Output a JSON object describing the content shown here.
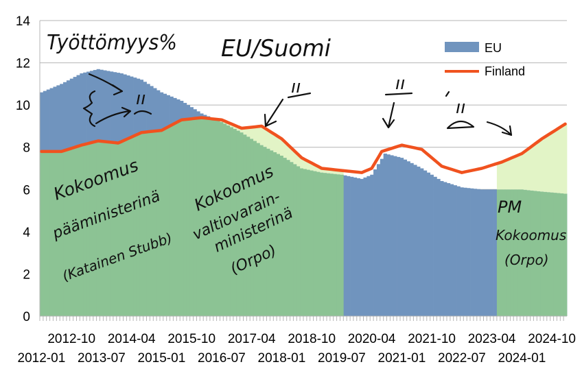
{
  "chart_data": {
    "type": "area",
    "ylim": [
      0,
      14
    ],
    "yticks": [
      0,
      2,
      4,
      6,
      8,
      10,
      12,
      14
    ],
    "xticks_upper": [
      "2012-10",
      "2014-04",
      "2015-10",
      "2017-04",
      "2018-10",
      "2020-04",
      "2021-10",
      "2023-04",
      "2024-10"
    ],
    "xticks_lower": [
      "2012-01",
      "2013-07",
      "2015-01",
      "2016-07",
      "2018-01",
      "2019-07",
      "2021-01",
      "2022-07",
      "2024-01"
    ],
    "grid": true,
    "legend_position": "top-right",
    "x_start": "2012-01",
    "x_end": "2025-02",
    "series": [
      {
        "name": "EU",
        "kind": "bar",
        "color": "#7094be",
        "points": [
          [
            "2012-01",
            10.6
          ],
          [
            "2012-07",
            11.0
          ],
          [
            "2013-01",
            11.5
          ],
          [
            "2013-06",
            11.7
          ],
          [
            "2014-01",
            11.5
          ],
          [
            "2014-07",
            11.2
          ],
          [
            "2015-01",
            10.6
          ],
          [
            "2015-07",
            10.2
          ],
          [
            "2016-01",
            9.6
          ],
          [
            "2016-07",
            9.2
          ],
          [
            "2017-01",
            8.7
          ],
          [
            "2017-07",
            8.1
          ],
          [
            "2018-01",
            7.6
          ],
          [
            "2018-07",
            7.0
          ],
          [
            "2019-01",
            6.8
          ],
          [
            "2019-07",
            6.7
          ],
          [
            "2020-01",
            6.5
          ],
          [
            "2020-04",
            6.7
          ],
          [
            "2020-08",
            7.7
          ],
          [
            "2021-01",
            7.5
          ],
          [
            "2021-07",
            7.0
          ],
          [
            "2022-01",
            6.4
          ],
          [
            "2022-07",
            6.1
          ],
          [
            "2023-01",
            6.0
          ],
          [
            "2023-07",
            6.0
          ],
          [
            "2024-01",
            6.0
          ],
          [
            "2024-07",
            5.9
          ],
          [
            "2025-02",
            5.8
          ]
        ]
      },
      {
        "name": "Finland",
        "kind": "line",
        "color": "#f0521f",
        "points": [
          [
            "2012-01",
            7.8
          ],
          [
            "2012-07",
            7.8
          ],
          [
            "2013-01",
            8.1
          ],
          [
            "2013-06",
            8.3
          ],
          [
            "2013-12",
            8.2
          ],
          [
            "2014-07",
            8.7
          ],
          [
            "2015-01",
            8.8
          ],
          [
            "2015-07",
            9.3
          ],
          [
            "2016-01",
            9.4
          ],
          [
            "2016-07",
            9.3
          ],
          [
            "2017-01",
            8.9
          ],
          [
            "2017-07",
            9.0
          ],
          [
            "2017-10",
            8.7
          ],
          [
            "2018-01",
            8.4
          ],
          [
            "2018-07",
            7.5
          ],
          [
            "2019-01",
            7.0
          ],
          [
            "2019-07",
            6.9
          ],
          [
            "2020-01",
            6.8
          ],
          [
            "2020-04",
            7.0
          ],
          [
            "2020-07",
            7.8
          ],
          [
            "2021-01",
            8.1
          ],
          [
            "2021-07",
            7.9
          ],
          [
            "2022-01",
            7.1
          ],
          [
            "2022-07",
            6.8
          ],
          [
            "2023-01",
            7.0
          ],
          [
            "2023-07",
            7.3
          ],
          [
            "2024-01",
            7.7
          ],
          [
            "2024-07",
            8.4
          ],
          [
            "2025-02",
            9.1
          ]
        ]
      }
    ],
    "bands": [
      {
        "from": "2012-01",
        "to": "2016-06",
        "color": "#8cc394",
        "fill_top": "min"
      },
      {
        "from": "2016-06",
        "to": "2019-07",
        "color": "#8cc394",
        "fill_top": "min"
      },
      {
        "from": "2016-06",
        "to": "2019-07",
        "color": "#e2f4c6",
        "fill_top": "finland"
      },
      {
        "from": "2023-06",
        "to": "2025-02",
        "color": "#8cc394",
        "fill_top": "eu"
      },
      {
        "from": "2023-06",
        "to": "2025-02",
        "color": "#e2f4c6",
        "fill_top": "finland"
      }
    ]
  },
  "annotations": {
    "title": "Työttömyys%",
    "subtitle": "EU/Suomi",
    "period1": [
      "Kokoomus",
      "pääministerinä",
      "(Katainen Stubb)"
    ],
    "period2": [
      "Kokoomus",
      "valtiovarain-",
      "ministerinä",
      "(Orpo)"
    ],
    "period3": [
      "PM",
      "Kokoomus",
      "(Orpo)"
    ],
    "ditto": "ıı"
  }
}
